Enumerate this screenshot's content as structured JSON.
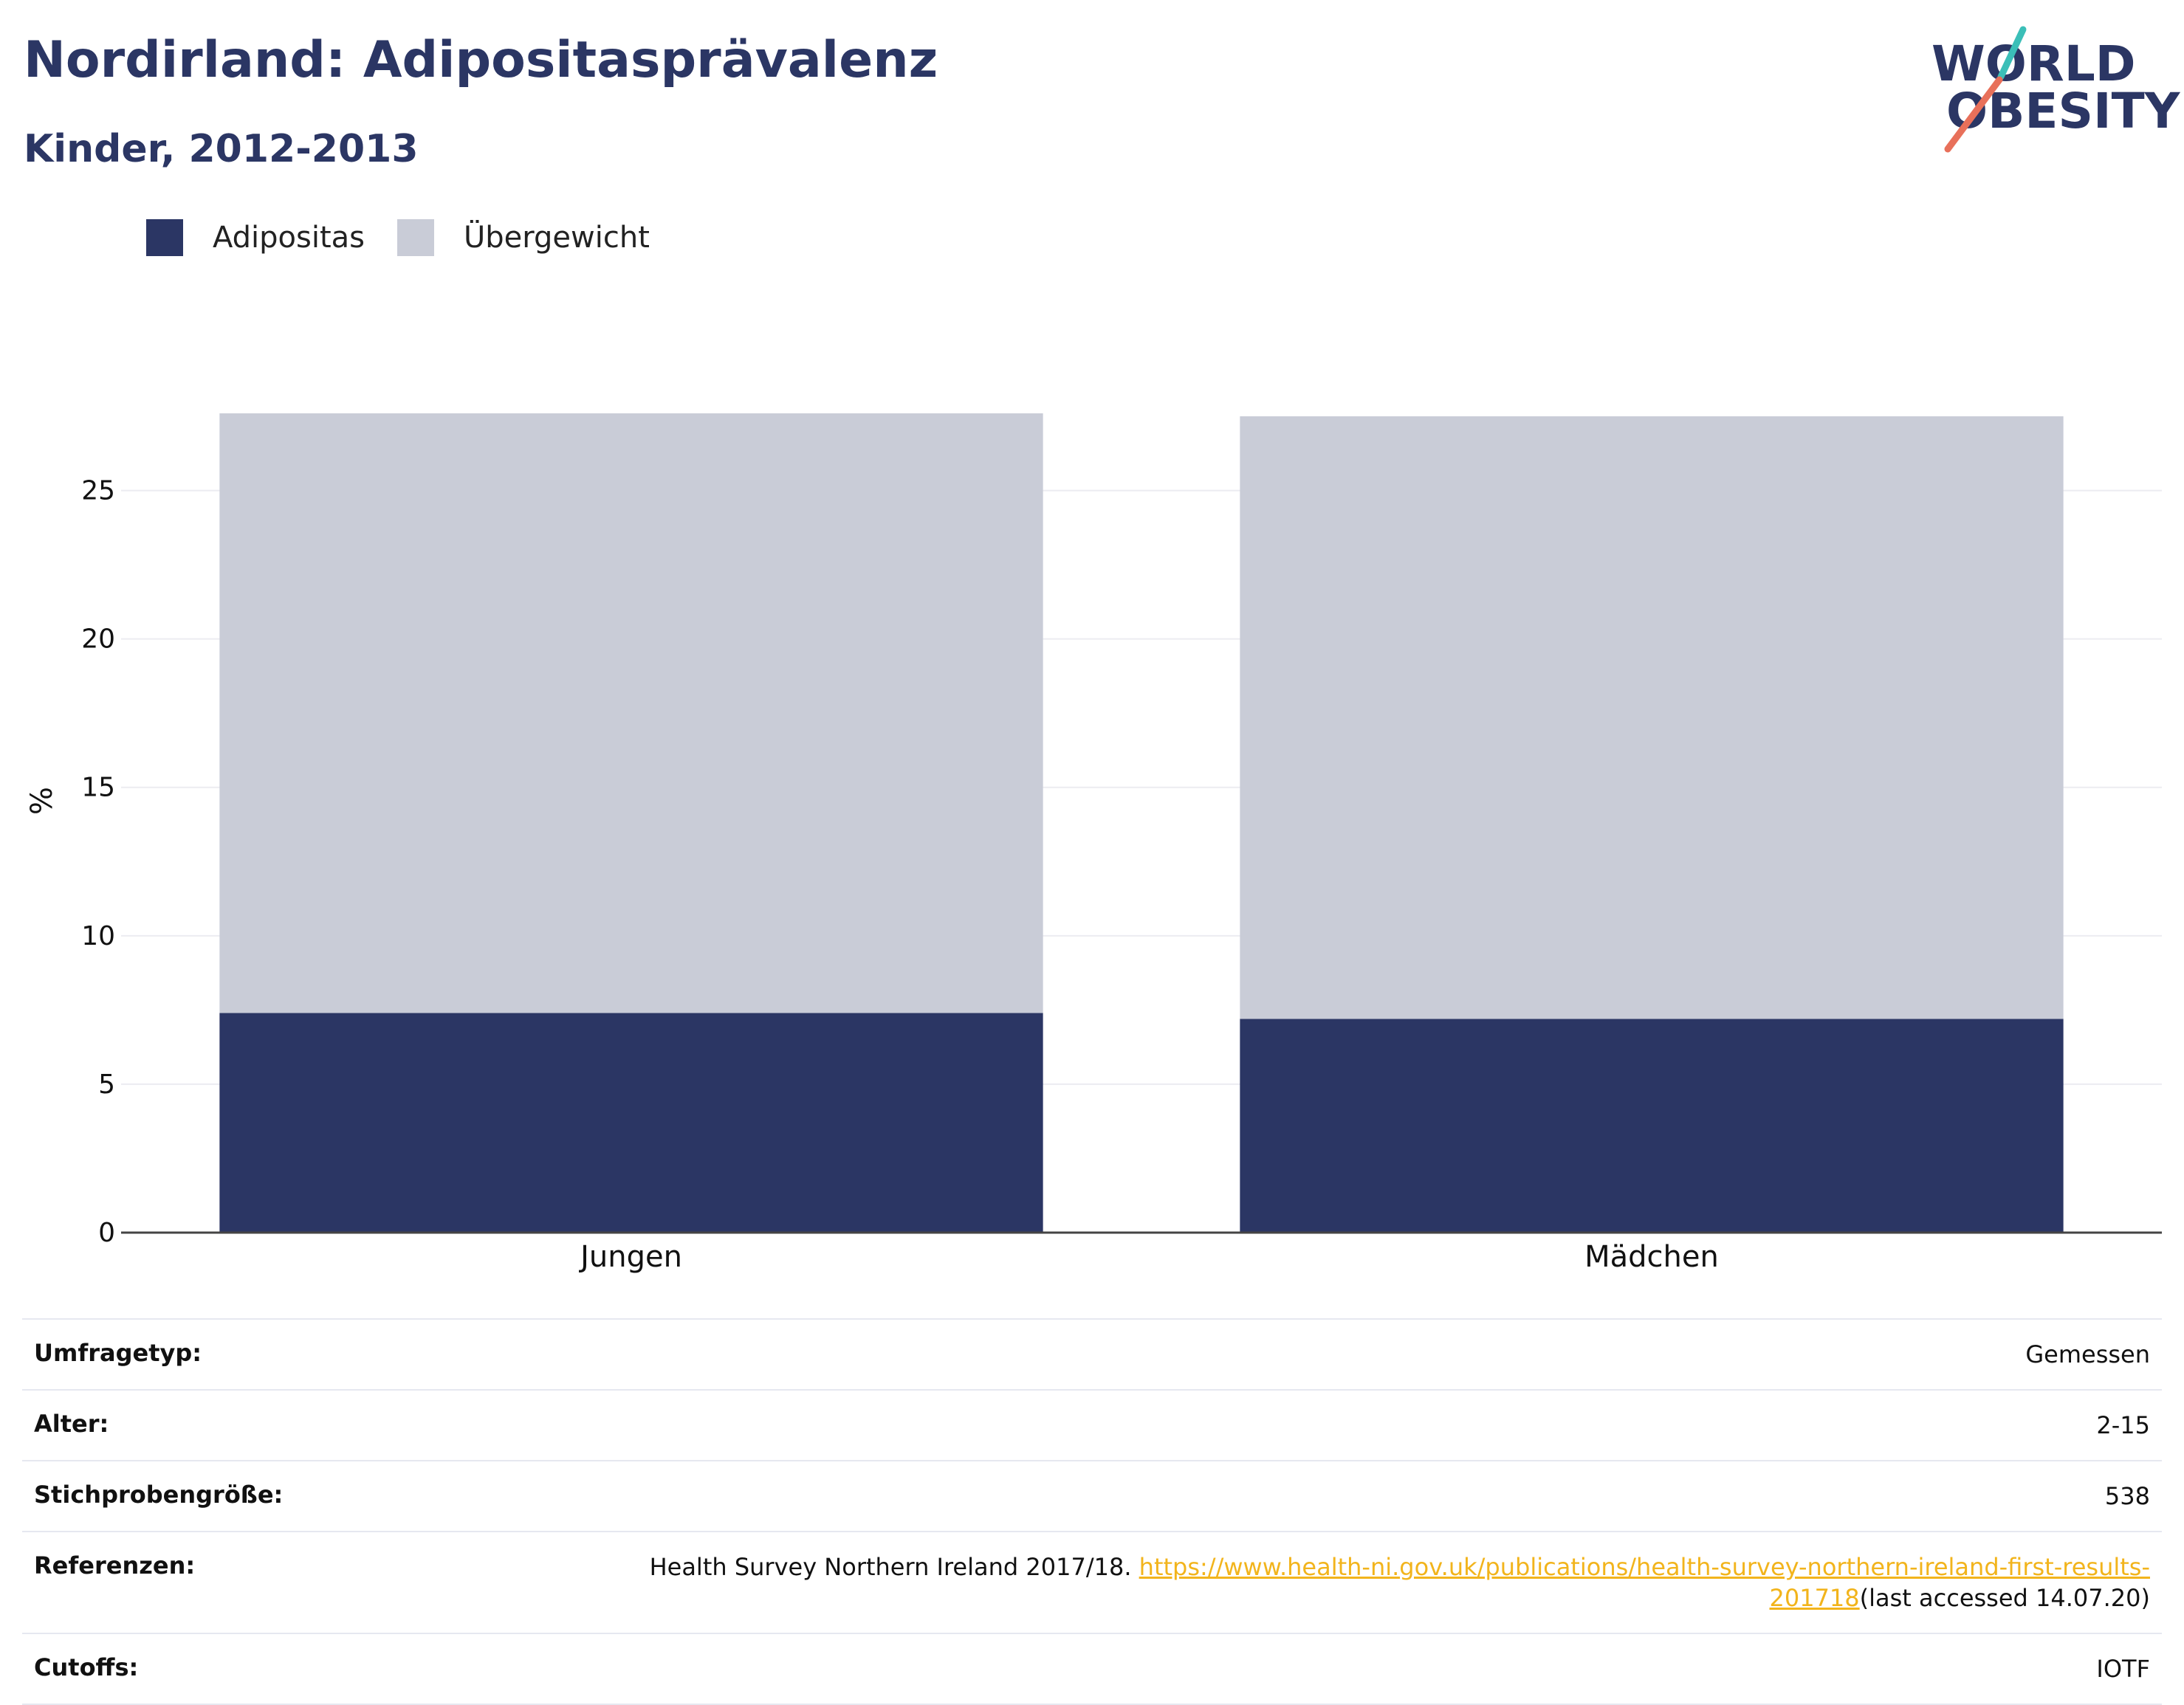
{
  "header": {
    "title": "Nordirland: Adipositasprävalenz",
    "subtitle": "Kinder, 2012-2013"
  },
  "logo": {
    "line1": "WORLD",
    "line2": "OBESITY",
    "colors": {
      "text": "#2b3664",
      "slash_top": "#3bbfb8",
      "slash_bottom": "#e8705a"
    }
  },
  "legend": {
    "items": [
      {
        "label": "Adipositas",
        "color": "#2b3664"
      },
      {
        "label": "Übergewicht",
        "color": "#c9ccd7"
      }
    ]
  },
  "chart_data": {
    "type": "bar",
    "stacked": true,
    "categories": [
      "Jungen",
      "Mädchen"
    ],
    "series": [
      {
        "name": "Adipositas",
        "color": "#2b3664",
        "values": [
          7.4,
          7.2
        ]
      },
      {
        "name": "Übergewicht",
        "color": "#c9ccd7",
        "values": [
          20.2,
          20.3
        ]
      }
    ],
    "title": "Nordirland: Adipositasprävalenz",
    "subtitle": "Kinder, 2012-2013",
    "xlabel": "",
    "ylabel": "%",
    "ylim": [
      0,
      27.6
    ],
    "yticks": [
      0,
      5,
      10,
      15,
      20,
      25
    ],
    "grid": true,
    "legend_position": "top-left"
  },
  "info": {
    "rows": [
      {
        "key": "Umfragetyp:",
        "value": "Gemessen"
      },
      {
        "key": "Alter:",
        "value": "2-15"
      },
      {
        "key": "Stichprobengröße:",
        "value": "538"
      },
      {
        "key": "Referenzen:",
        "value_prefix": "Health Survey Northern Ireland 2017/18. ",
        "link_line1": "https://www.health-ni.gov.uk/publications/health-survey-northern-ireland-first-results-",
        "link_line2": "201718",
        "value_suffix": "(last accessed 14.07.20)"
      },
      {
        "key": "Cutoffs:",
        "value": "IOTF"
      }
    ]
  }
}
